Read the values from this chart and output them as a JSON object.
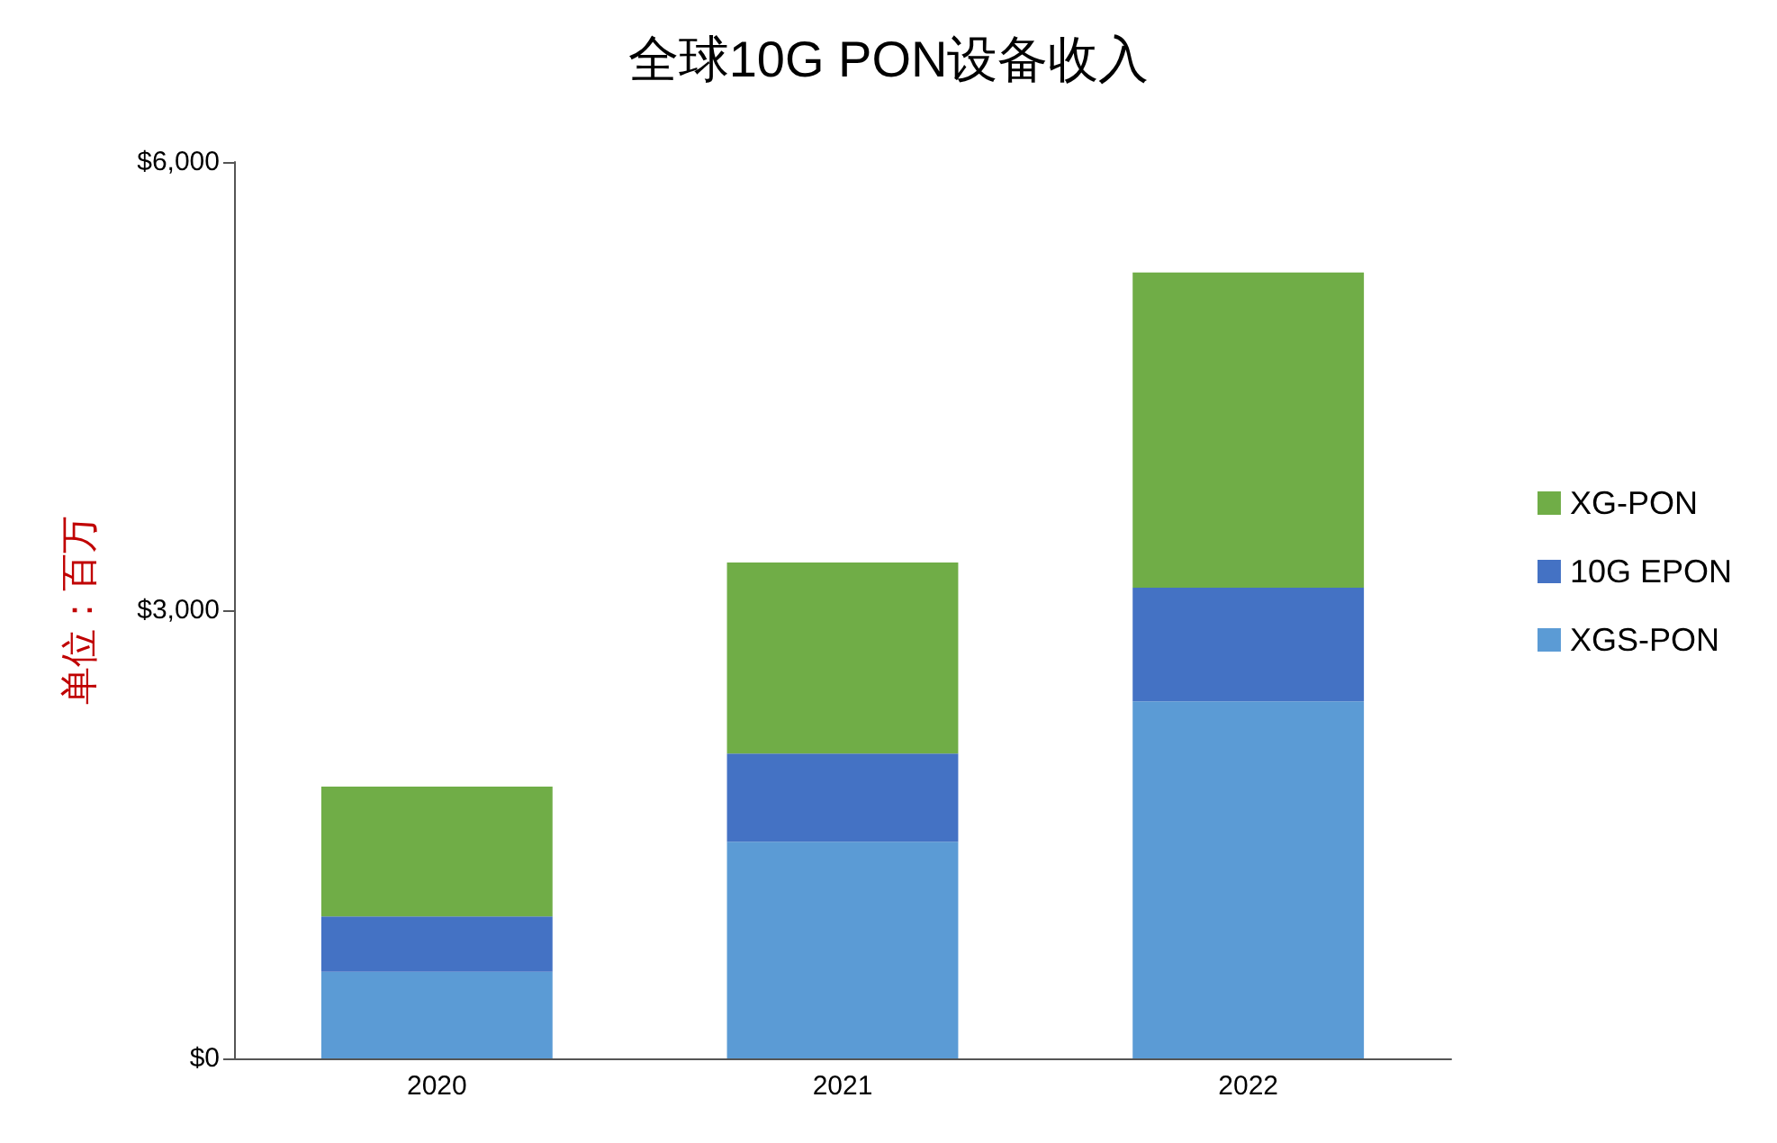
{
  "chart_data": {
    "type": "bar",
    "title": "全球10G PON设备收入",
    "ylabel": "单位：百万",
    "categories": [
      "2020",
      "2021",
      "2022"
    ],
    "series": [
      {
        "name": "XGS-PON",
        "color": "#5b9bd5",
        "values": [
          580,
          1450,
          2390
        ]
      },
      {
        "name": "10G EPON",
        "color": "#4472c4",
        "values": [
          370,
          590,
          760
        ]
      },
      {
        "name": "XG-PON",
        "color": "#70ad47",
        "values": [
          870,
          1280,
          2110
        ]
      }
    ],
    "stacked": true,
    "ylim": [
      0,
      6000
    ],
    "yticks": [
      {
        "value": 0,
        "label": "$0"
      },
      {
        "value": 3000,
        "label": "$3,000"
      },
      {
        "value": 6000,
        "label": "$6,000"
      }
    ],
    "grid": false,
    "legend": "right"
  }
}
